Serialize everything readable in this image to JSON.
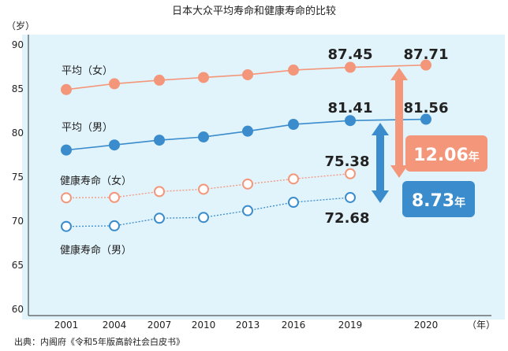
{
  "chart_data": {
    "type": "line",
    "title": "日本大众平均寿命和健康寿命的比较",
    "ylabel": "（岁）",
    "xlabel": "（年）",
    "ylim": [
      60,
      90
    ],
    "yticks": [
      "60",
      "65",
      "70",
      "75",
      "80",
      "85",
      "90"
    ],
    "categories": [
      "2001",
      "2004",
      "2007",
      "2010",
      "2013",
      "2016",
      "2019",
      "2020"
    ],
    "series": [
      {
        "name": "平均（女）",
        "color": "#f4967a",
        "style": "solid-filled",
        "values": [
          84.93,
          85.59,
          85.99,
          86.3,
          86.61,
          87.14,
          87.45,
          87.71
        ]
      },
      {
        "name": "平均（男）",
        "color": "#3a8ccc",
        "style": "solid-filled",
        "values": [
          78.07,
          78.64,
          79.19,
          79.55,
          80.21,
          80.98,
          81.41,
          81.56
        ]
      },
      {
        "name": "健康寿命（女）",
        "color": "#f4967a",
        "style": "dotted-hollow",
        "values": [
          72.65,
          72.69,
          73.36,
          73.62,
          74.21,
          74.79,
          75.38,
          null
        ]
      },
      {
        "name": "健康寿命（男）",
        "color": "#3a8ccc",
        "style": "dotted-hollow",
        "values": [
          69.4,
          69.47,
          70.33,
          70.42,
          71.19,
          72.14,
          72.68,
          null
        ]
      }
    ],
    "data_labels": [
      "87.45",
      "87.71",
      "81.41",
      "81.56",
      "75.38",
      "72.68"
    ],
    "annotations": [
      {
        "value": "12.06",
        "unit": "年",
        "color": "#f4967a"
      },
      {
        "value": "8.73",
        "unit": "年",
        "color": "#3a8ccc"
      }
    ],
    "source": "出典：内阁府《令和5年版高龄社会白皮书》",
    "grid": false
  }
}
